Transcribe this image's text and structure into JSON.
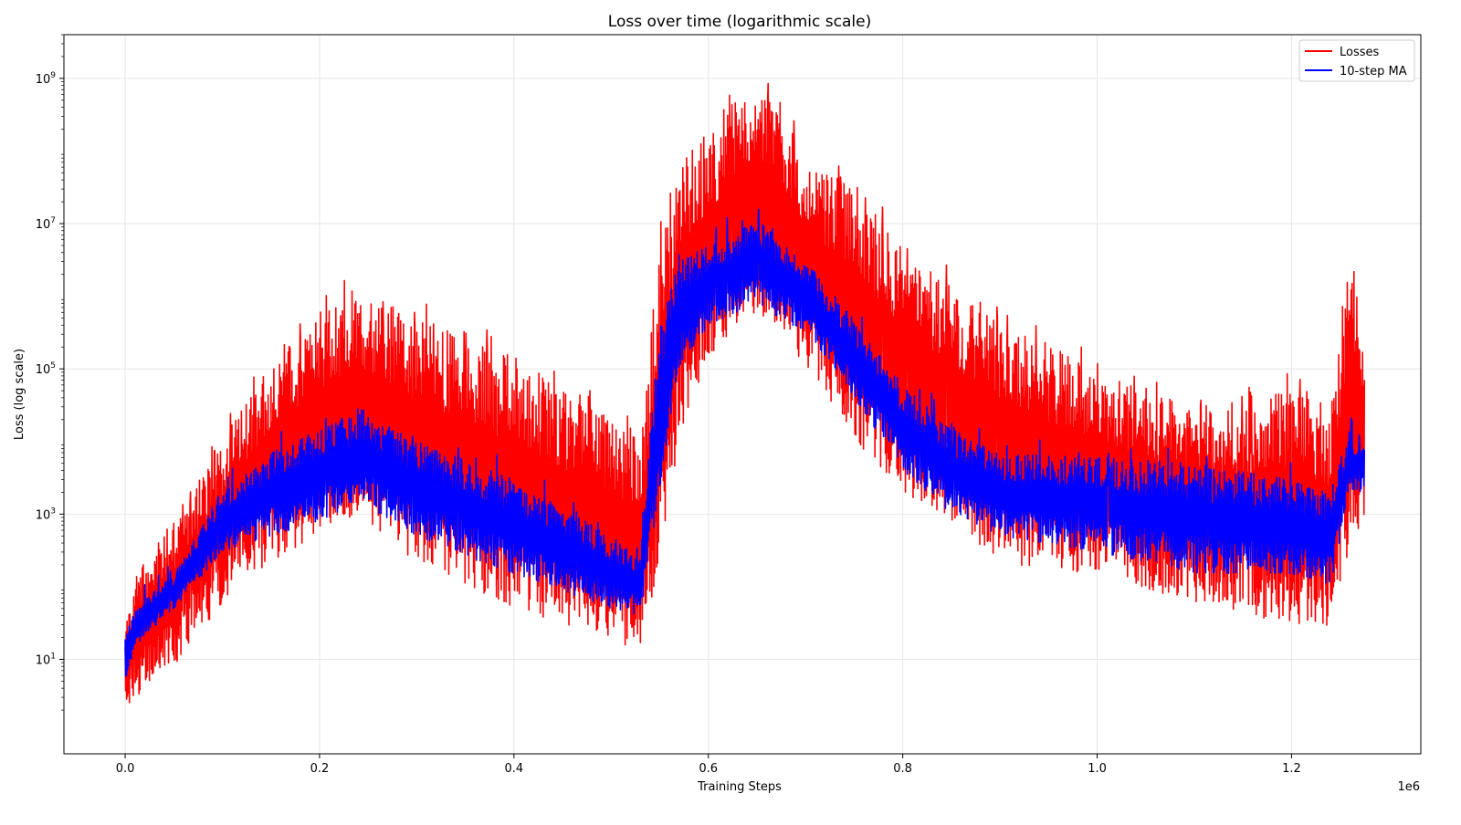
{
  "chart_data": {
    "type": "line",
    "title": "Loss over time (logarithmic scale)",
    "xlabel": "Training Steps",
    "ylabel": "Loss (log scale)",
    "x_offset_label": "1e6",
    "x_ticks": [
      {
        "value": 0.0,
        "label": "0.0"
      },
      {
        "value": 0.2,
        "label": "0.2"
      },
      {
        "value": 0.4,
        "label": "0.4"
      },
      {
        "value": 0.6,
        "label": "0.6"
      },
      {
        "value": 0.8,
        "label": "0.8"
      },
      {
        "value": 1.0,
        "label": "1.0"
      },
      {
        "value": 1.2,
        "label": "1.2"
      }
    ],
    "y_ticks": [
      {
        "value": 10,
        "base": "10",
        "exp": "1"
      },
      {
        "value": 1000,
        "base": "10",
        "exp": "3"
      },
      {
        "value": 100000,
        "base": "10",
        "exp": "5"
      },
      {
        "value": 10000000,
        "base": "10",
        "exp": "7"
      },
      {
        "value": 1000000000,
        "base": "10",
        "exp": "9"
      }
    ],
    "xlim": [
      -0.063,
      1.333
    ],
    "ylim": [
      0.5,
      4000000000
    ],
    "yscale": "log",
    "grid": true,
    "legend_position": "top-right",
    "series": [
      {
        "name": "Losses",
        "color": "#ff0000",
        "x": [
          0.0,
          0.01,
          0.05,
          0.1,
          0.15,
          0.2,
          0.24,
          0.3,
          0.4,
          0.5,
          0.53,
          0.55,
          0.57,
          0.6,
          0.65,
          0.7,
          0.75,
          0.8,
          0.85,
          0.9,
          1.0,
          1.1,
          1.2,
          1.24,
          1.26,
          1.275
        ],
        "upper": [
          40,
          150,
          800,
          10000,
          150000,
          600000,
          1200000,
          500000,
          150000,
          20000,
          10000,
          8000000,
          80000000,
          150000000,
          1000000000,
          100000000,
          30000000,
          5000000,
          1500000,
          500000,
          100000,
          30000,
          50000,
          30000,
          3000000,
          300000
        ],
        "lower": [
          2,
          3,
          8,
          60,
          200,
          500,
          1000,
          200,
          50,
          20,
          12,
          100,
          10000,
          150000,
          600000,
          100000,
          10000,
          2000,
          800,
          200,
          150,
          60,
          30,
          20,
          300,
          1000
        ]
      },
      {
        "name": "10-step MA",
        "color": "#0000ff",
        "x": [
          0.0,
          0.01,
          0.05,
          0.1,
          0.15,
          0.2,
          0.24,
          0.3,
          0.4,
          0.5,
          0.53,
          0.55,
          0.57,
          0.6,
          0.65,
          0.7,
          0.75,
          0.8,
          0.85,
          0.9,
          1.0,
          1.1,
          1.2,
          1.24,
          1.26,
          1.275
        ],
        "upper": [
          20,
          50,
          150,
          2000,
          7000,
          15000,
          30000,
          10000,
          3000,
          500,
          250,
          500000,
          3000000,
          5000000,
          12000000,
          3000000,
          500000,
          60000,
          15000,
          7000,
          6000,
          5000,
          3000,
          2000,
          15000,
          8000
        ],
        "lower": [
          5,
          15,
          50,
          300,
          500,
          800,
          1500,
          500,
          150,
          50,
          40,
          2000,
          100000,
          400000,
          800000,
          300000,
          40000,
          4000,
          1000,
          500,
          300,
          150,
          150,
          100,
          2000,
          2000
        ]
      }
    ]
  }
}
